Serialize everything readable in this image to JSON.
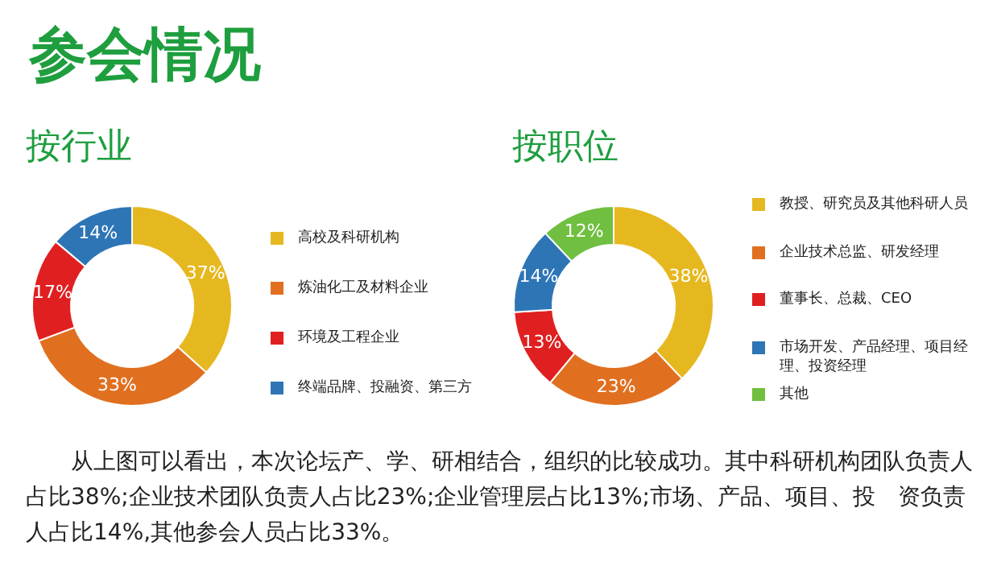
{
  "chart_data": [
    {
      "type": "donut",
      "title": "参会情况",
      "subtitle": "按行业",
      "categories": [
        "高校及科研机构",
        "炼油化工及材料企业",
        "环境及工程企业",
        "终端品牌、投融资、第三方"
      ],
      "values": [
        37,
        33,
        17,
        14
      ],
      "colors": [
        "#e6b820",
        "#e07020",
        "#e02020",
        "#2e75b6"
      ],
      "value_labels": [
        "37%",
        "33%",
        "17%",
        "14%"
      ],
      "legend": "right"
    },
    {
      "type": "donut",
      "subtitle": "按职位",
      "categories": [
        "教授、研究员及其他科研人员",
        "企业技术总监、研发经理",
        "董事长、总裁、CEO",
        "市场开发、产品经理、项目经理、投资经理",
        "其他"
      ],
      "values": [
        38,
        23,
        13,
        14,
        12
      ],
      "colors": [
        "#e6b820",
        "#e07020",
        "#e02020",
        "#2e75b6",
        "#70bf40"
      ],
      "value_labels": [
        "38%",
        "23%",
        "13%",
        "14%",
        "12%"
      ],
      "legend": "right",
      "annotations": [
        "从上图可以看出，本次论坛产、学、研相结合，组织的比较成功。其中科研机构团队负责人占比38%;企业技术团队负责人占比23%;企业管理层占比13%;市场、产品、项目、投　资负责人占比14%,其他参会人员占比33%。"
      ]
    }
  ]
}
